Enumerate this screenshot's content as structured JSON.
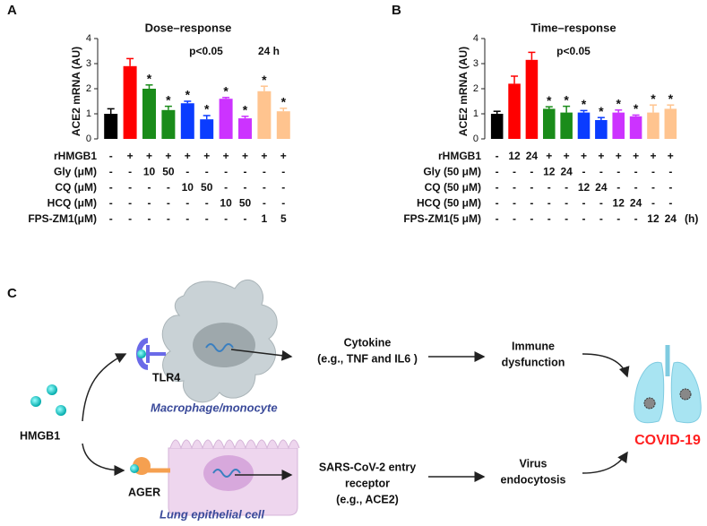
{
  "chart_data": [
    {
      "type": "bar",
      "panel": "A",
      "title": "Dose–response",
      "y_label": "ACE2 mRNA (AU)",
      "annotations": [
        "p<0.05",
        "24 h"
      ],
      "ylim": [
        0,
        4
      ],
      "yticks": [
        0,
        1,
        2,
        3,
        4
      ],
      "series": [
        {
          "values": [
            1.0,
            2.9,
            2.0,
            1.15,
            1.42,
            0.78,
            1.6,
            0.82,
            1.9,
            1.1
          ],
          "errors": [
            0.2,
            0.3,
            0.15,
            0.15,
            0.08,
            0.15,
            0.05,
            0.08,
            0.2,
            0.12
          ],
          "colors": [
            "#000000",
            "#ff0000",
            "#1a8c1a",
            "#1a8c1a",
            "#0a3cff",
            "#0a3cff",
            "#cc33ff",
            "#cc33ff",
            "#ffc48f",
            "#ffc48f"
          ],
          "significance": [
            null,
            null,
            "*",
            "*",
            "*",
            "*",
            "*",
            "*",
            "*",
            "*"
          ]
        }
      ],
      "conditions": [
        {
          "label": "rHMGB1",
          "values": [
            "-",
            "+",
            "+",
            "+",
            "+",
            "+",
            "+",
            "+",
            "+",
            "+"
          ]
        },
        {
          "label": "Gly (μM)",
          "values": [
            "-",
            "-",
            "10",
            "50",
            "-",
            "-",
            "-",
            "-",
            "-",
            "-"
          ]
        },
        {
          "label": "CQ (μM)",
          "values": [
            "-",
            "-",
            "-",
            "-",
            "10",
            "50",
            "-",
            "-",
            "-",
            "-"
          ]
        },
        {
          "label": "HCQ (μM)",
          "values": [
            "-",
            "-",
            "-",
            "-",
            "-",
            "-",
            "10",
            "50",
            "-",
            "-"
          ]
        },
        {
          "label": "FPS-ZM1(μM)",
          "values": [
            "-",
            "-",
            "-",
            "-",
            "-",
            "-",
            "-",
            "-",
            "1",
            "5"
          ]
        }
      ]
    },
    {
      "type": "bar",
      "panel": "B",
      "title": "Time–response",
      "y_label": "ACE2 mRNA (AU)",
      "annotations": [
        "p<0.05"
      ],
      "ylim": [
        0,
        4
      ],
      "yticks": [
        0,
        1,
        2,
        3,
        4
      ],
      "series": [
        {
          "values": [
            1.0,
            2.2,
            3.15,
            1.2,
            1.05,
            1.05,
            0.75,
            1.05,
            0.9,
            1.05,
            1.2
          ],
          "errors": [
            0.1,
            0.3,
            0.3,
            0.08,
            0.25,
            0.08,
            0.1,
            0.1,
            0.05,
            0.3,
            0.15
          ],
          "colors": [
            "#000000",
            "#ff0000",
            "#ff0000",
            "#1a8c1a",
            "#1a8c1a",
            "#0a3cff",
            "#0a3cff",
            "#cc33ff",
            "#cc33ff",
            "#ffc48f",
            "#ffc48f"
          ],
          "significance": [
            null,
            null,
            null,
            "*",
            "*",
            "*",
            "*",
            "*",
            "*",
            "*",
            "*"
          ]
        }
      ],
      "conditions": [
        {
          "label": "rHMGB1",
          "values": [
            "-",
            "12",
            "24",
            "+",
            "+",
            "+",
            "+",
            "+",
            "+",
            "+",
            "+"
          ]
        },
        {
          "label": "Gly (50 μM)",
          "values": [
            "-",
            "-",
            "-",
            "12",
            "24",
            "-",
            "-",
            "-",
            "-",
            "-",
            "-"
          ]
        },
        {
          "label": "CQ (50 μM)",
          "values": [
            "-",
            "-",
            "-",
            "-",
            "-",
            "12",
            "24",
            "-",
            "-",
            "-",
            "-"
          ]
        },
        {
          "label": "HCQ (50 μM)",
          "values": [
            "-",
            "-",
            "-",
            "-",
            "-",
            "-",
            "-",
            "12",
            "24",
            "-",
            "-"
          ]
        },
        {
          "label": "FPS-ZM1(5 μM)",
          "values": [
            "-",
            "-",
            "-",
            "-",
            "-",
            "-",
            "-",
            "-",
            "-",
            "12",
            "24"
          ],
          "suffix": "(h)"
        }
      ]
    }
  ],
  "diagram": {
    "panel": "C",
    "hmgb1": "HMGB1",
    "tlr4": "TLR4",
    "ager": "AGER",
    "macrophage": "Macrophage/monocyte",
    "lung_cell": "Lung epithelial cell",
    "cytokine": [
      "Cytokine",
      "(e.g., TNF and IL6 )"
    ],
    "receptor": [
      "SARS-CoV-2 entry",
      "receptor",
      "(e.g., ACE2)"
    ],
    "immune": [
      "Immune",
      "dysfunction"
    ],
    "virus": [
      "Virus",
      "endocytosis"
    ],
    "outcome": "COVID-19"
  }
}
